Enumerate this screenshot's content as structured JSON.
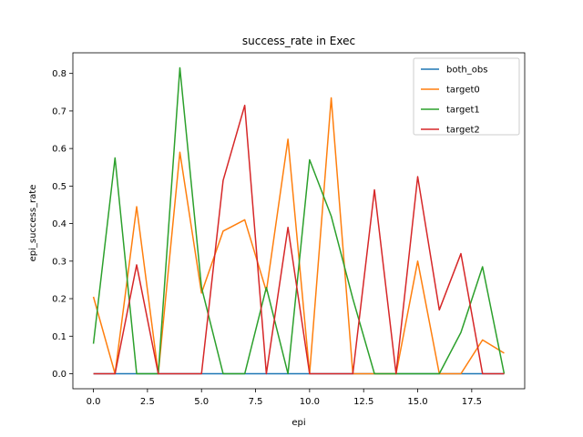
{
  "chart_data": {
    "type": "line",
    "title": "success_rate in Exec",
    "xlabel": "epi",
    "ylabel": "epi_success_rate",
    "xlim": [
      -0.95,
      19.95
    ],
    "ylim": [
      -0.04,
      0.855
    ],
    "xticks": [
      0.0,
      2.5,
      5.0,
      7.5,
      10.0,
      12.5,
      15.0,
      17.5
    ],
    "xtick_labels": [
      "0.0",
      "2.5",
      "5.0",
      "7.5",
      "10.0",
      "12.5",
      "15.0",
      "17.5"
    ],
    "yticks": [
      0.0,
      0.1,
      0.2,
      0.3,
      0.4,
      0.5,
      0.6,
      0.7,
      0.8
    ],
    "ytick_labels": [
      "0.0",
      "0.1",
      "0.2",
      "0.3",
      "0.4",
      "0.5",
      "0.6",
      "0.7",
      "0.8"
    ],
    "grid": false,
    "legend_position": "top-right",
    "x": [
      0,
      1,
      2,
      3,
      4,
      5,
      6,
      7,
      8,
      9,
      10,
      11,
      12,
      13,
      14,
      15,
      16,
      17,
      18,
      19
    ],
    "series": [
      {
        "name": "both_obs",
        "color": "#1f77b4",
        "values": [
          0,
          0,
          0,
          0,
          0,
          0,
          0,
          0,
          0,
          0,
          0,
          0,
          0,
          0,
          0,
          0,
          0,
          0,
          0,
          0
        ]
      },
      {
        "name": "target0",
        "color": "#ff7f0e",
        "values": [
          0.205,
          0,
          0.445,
          0,
          0.59,
          0.215,
          0.38,
          0.41,
          0.22,
          0.625,
          0,
          0.735,
          0,
          0,
          0,
          0.3,
          0,
          0,
          0.09,
          0.055
        ]
      },
      {
        "name": "target1",
        "color": "#2ca02c",
        "values": [
          0.08,
          0.575,
          0,
          0,
          0.815,
          0.23,
          0,
          0,
          0.23,
          0,
          0.57,
          0.42,
          0.2,
          0,
          0,
          0,
          0,
          0.11,
          0.285,
          0
        ]
      },
      {
        "name": "target2",
        "color": "#d62728",
        "values": [
          0,
          0,
          0.29,
          0,
          0,
          0,
          0.515,
          0.715,
          0,
          0.39,
          0,
          0,
          0,
          0.49,
          0,
          0.525,
          0.17,
          0.32,
          0,
          0
        ]
      }
    ]
  }
}
